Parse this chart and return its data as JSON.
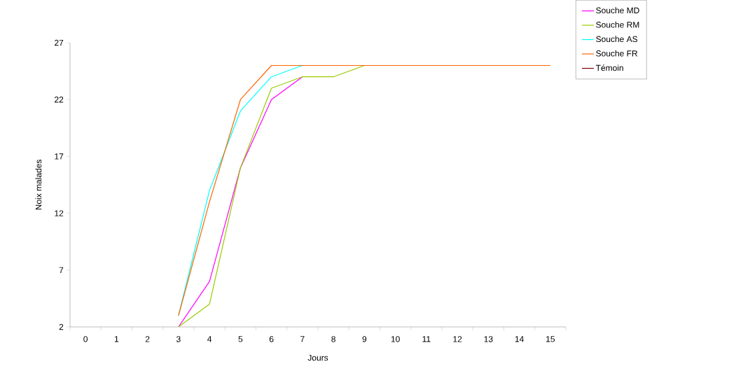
{
  "chart_data": {
    "type": "line",
    "xlabel": "Jours",
    "ylabel": "Noix malades",
    "categories": [
      "0",
      "1",
      "2",
      "3",
      "4",
      "5",
      "6",
      "7",
      "8",
      "9",
      "10",
      "11",
      "12",
      "13",
      "14",
      "15"
    ],
    "ylim": [
      2,
      27
    ],
    "yticks": [
      2,
      7,
      12,
      17,
      22,
      27
    ],
    "grid": false,
    "legend": "top right",
    "marker": "none",
    "line_style": "solid",
    "series": [
      {
        "name": "Souche MD",
        "color": "#ff00ff",
        "values": [
          null,
          null,
          null,
          2,
          6,
          16,
          22,
          24,
          null,
          null,
          null,
          null,
          null,
          null,
          null,
          null
        ]
      },
      {
        "name": "Souche RM",
        "color": "#99cc00",
        "values": [
          null,
          null,
          null,
          2,
          4,
          16,
          23,
          24,
          24,
          25,
          null,
          null,
          null,
          null,
          null,
          null
        ]
      },
      {
        "name": "Souche AS",
        "color": "#00ffff",
        "values": [
          null,
          null,
          null,
          3,
          14,
          21,
          24,
          25,
          null,
          null,
          null,
          null,
          null,
          null,
          null,
          null
        ]
      },
      {
        "name": "Souche FR",
        "color": "#ff6600",
        "values": [
          null,
          null,
          null,
          3,
          13,
          22,
          25,
          25,
          25,
          25,
          25,
          25,
          25,
          25,
          25,
          25
        ]
      },
      {
        "name": "Témoin",
        "color": "#800000",
        "values": [
          null,
          null,
          null,
          null,
          null,
          null,
          null,
          null,
          null,
          null,
          null,
          null,
          null,
          null,
          null,
          null
        ]
      }
    ]
  }
}
